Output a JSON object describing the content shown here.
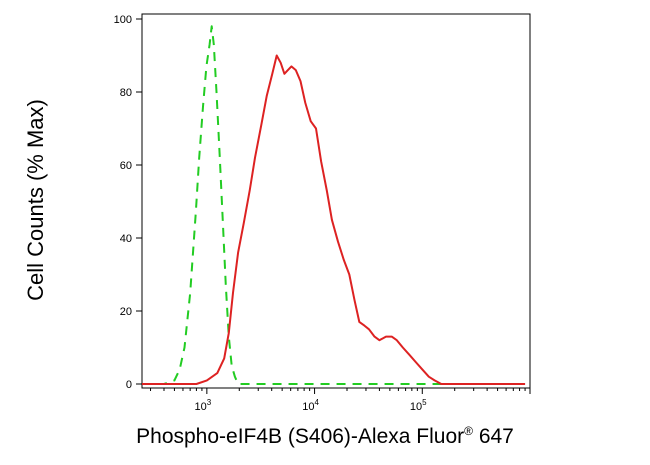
{
  "chart_data": {
    "type": "line",
    "title": "",
    "xlabel_main": "Phospho-eIF4B (S406)-Alexa Fluor",
    "xlabel_sup": "®",
    "xlabel_tail": " 647",
    "ylabel": "Cell Counts (% Max)",
    "xscale": "log",
    "xlim": [
      250,
      1000000
    ],
    "ylim": [
      0,
      100
    ],
    "xtick_labels": [
      {
        "base": "10",
        "exp": "3",
        "value": 1000
      },
      {
        "base": "10",
        "exp": "4",
        "value": 10000
      },
      {
        "base": "10",
        "exp": "5",
        "value": 100000
      }
    ],
    "yticks": [
      0,
      20,
      40,
      60,
      80,
      100
    ],
    "grid": false,
    "legend": "none",
    "series": [
      {
        "style": "dashed",
        "color": "#22cc22",
        "points": [
          [
            250,
            0
          ],
          [
            400,
            0
          ],
          [
            500,
            1
          ],
          [
            560,
            4
          ],
          [
            620,
            10
          ],
          [
            700,
            25
          ],
          [
            790,
            47
          ],
          [
            850,
            62
          ],
          [
            920,
            76
          ],
          [
            990,
            87
          ],
          [
            1060,
            93
          ],
          [
            1110,
            98
          ],
          [
            1160,
            93
          ],
          [
            1230,
            80
          ],
          [
            1320,
            62
          ],
          [
            1410,
            44
          ],
          [
            1500,
            27
          ],
          [
            1600,
            13
          ],
          [
            1700,
            5
          ],
          [
            1820,
            2
          ],
          [
            1950,
            0
          ],
          [
            4000,
            0
          ],
          [
            100000,
            0
          ],
          [
            900000,
            0
          ]
        ]
      },
      {
        "style": "solid",
        "color": "#dd2222",
        "points": [
          [
            250,
            0
          ],
          [
            800,
            0
          ],
          [
            1000,
            1
          ],
          [
            1250,
            3
          ],
          [
            1450,
            7
          ],
          [
            1600,
            14
          ],
          [
            1750,
            25
          ],
          [
            1950,
            36
          ],
          [
            2200,
            44
          ],
          [
            2500,
            53
          ],
          [
            2800,
            62
          ],
          [
            3200,
            71
          ],
          [
            3600,
            79
          ],
          [
            4050,
            85
          ],
          [
            4450,
            90
          ],
          [
            4850,
            88
          ],
          [
            5250,
            85
          ],
          [
            5650,
            86
          ],
          [
            6100,
            87
          ],
          [
            6700,
            86
          ],
          [
            7400,
            83
          ],
          [
            8200,
            77
          ],
          [
            9200,
            72
          ],
          [
            10300,
            70
          ],
          [
            11500,
            61
          ],
          [
            13000,
            53
          ],
          [
            14500,
            45
          ],
          [
            16500,
            39
          ],
          [
            18700,
            34
          ],
          [
            21000,
            30
          ],
          [
            23500,
            23
          ],
          [
            26000,
            17
          ],
          [
            29000,
            16
          ],
          [
            32000,
            15
          ],
          [
            36000,
            13
          ],
          [
            40000,
            12
          ],
          [
            46000,
            13
          ],
          [
            52000,
            13
          ],
          [
            58000,
            12
          ],
          [
            66000,
            10
          ],
          [
            76000,
            8
          ],
          [
            87000,
            6
          ],
          [
            100000,
            4
          ],
          [
            115000,
            2
          ],
          [
            130000,
            1
          ],
          [
            150000,
            0
          ],
          [
            900000,
            0
          ]
        ]
      }
    ]
  }
}
